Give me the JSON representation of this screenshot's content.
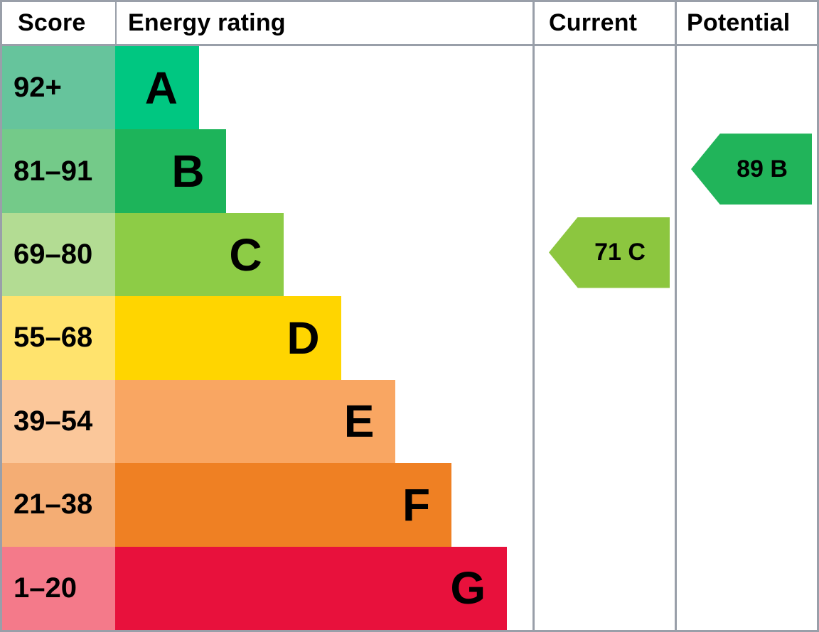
{
  "header": {
    "score": "Score",
    "energy_rating": "Energy rating",
    "current": "Current",
    "potential": "Potential"
  },
  "chart_data": {
    "type": "bar",
    "title": "Energy rating (EPC band chart)",
    "columns": [
      "Score",
      "Energy rating",
      "Current",
      "Potential"
    ],
    "bands": [
      {
        "letter": "A",
        "score_range": "92+",
        "score_bg": "#66c49c",
        "bar_color": "#00c781",
        "bar_width_pct": 20.1
      },
      {
        "letter": "B",
        "score_range": "81–91",
        "score_bg": "#74ca89",
        "bar_color": "#1db45a",
        "bar_width_pct": 26.5
      },
      {
        "letter": "C",
        "score_range": "69–80",
        "score_bg": "#b3dc93",
        "bar_color": "#8dcc46",
        "bar_width_pct": 40.3
      },
      {
        "letter": "D",
        "score_range": "55–68",
        "score_bg": "#ffe36d",
        "bar_color": "#ffd500",
        "bar_width_pct": 54.1
      },
      {
        "letter": "E",
        "score_range": "39–54",
        "score_bg": "#fbc79a",
        "bar_color": "#f9a662",
        "bar_width_pct": 67.2
      },
      {
        "letter": "F",
        "score_range": "21–38",
        "score_bg": "#f4ad74",
        "bar_color": "#ef8023",
        "bar_width_pct": 80.6
      },
      {
        "letter": "G",
        "score_range": "1–20",
        "score_bg": "#f47a8a",
        "bar_color": "#e8113c",
        "bar_width_pct": 93.9
      }
    ],
    "current": {
      "value": 71,
      "band": "C",
      "label": "71 C",
      "color": "#8cc63f"
    },
    "potential": {
      "value": 89,
      "band": "B",
      "label": "89 B",
      "color": "#21b45a"
    },
    "layout": {
      "grid_color": "#999fa9",
      "arrow_direction": "left"
    }
  }
}
